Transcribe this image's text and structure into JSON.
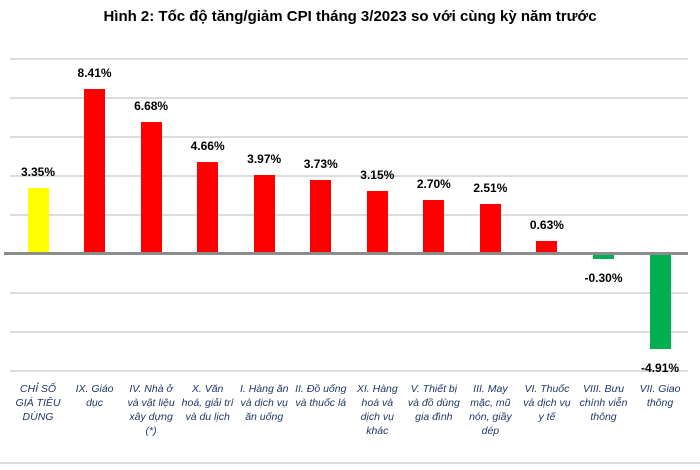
{
  "title": "Hình 2: Tốc độ tăng/giảm CPI tháng 3/2023 so với cùng kỳ năm trước",
  "chart_data": {
    "type": "bar",
    "title": "Hình 2: Tốc độ tăng/giảm CPI tháng 3/2023 so với cùng kỳ năm trước",
    "categories": [
      "CHỈ SỐ GIÁ TIÊU DÙNG",
      "IX. Giáo dục",
      "IV. Nhà ở và vật liệu xây dựng (*)",
      "X. Văn hoá, giải trí và du lịch",
      "I. Hàng ăn và dịch vụ ăn uống",
      "II. Đồ uống và thuốc lá",
      "XI. Hàng hoá và dịch vụ khác",
      "V. Thiết bị và đồ dùng gia đình",
      "III. May mặc, mũ nón, giầy dép",
      "VI. Thuốc và dịch vụ y tế",
      "VIII. Bưu chính viễn thông",
      "VII. Giao thông"
    ],
    "values": [
      3.35,
      8.41,
      6.68,
      4.66,
      3.97,
      3.73,
      3.15,
      2.7,
      2.51,
      0.63,
      -0.3,
      -4.91
    ],
    "value_labels": [
      "3.35%",
      "8.41%",
      "6.68%",
      "4.66%",
      "3.97%",
      "3.73%",
      "3.15%",
      "2.70%",
      "2.51%",
      "0.63%",
      "-0.30%",
      "-4.91%"
    ],
    "bar_colors": [
      "#FFFF00",
      "#FF0000",
      "#FF0000",
      "#FF0000",
      "#FF0000",
      "#FF0000",
      "#FF0000",
      "#FF0000",
      "#FF0000",
      "#FF0000",
      "#00B050",
      "#00B050"
    ],
    "xlabel": "",
    "ylabel": "",
    "ylim": [
      -6,
      10
    ],
    "gridline_step": 2,
    "grid": true,
    "legend_position": "none",
    "colors": {
      "cpi_bar": "#FFFF00",
      "increase_bar": "#FF0000",
      "decrease_bar": "#00B050",
      "gridline": "#DCDCDC",
      "zero_axis": "#8C8C8C",
      "category_label": "#1F3864",
      "value_label": "#000000",
      "title": "#000000",
      "background": "#FFFFFF"
    }
  }
}
